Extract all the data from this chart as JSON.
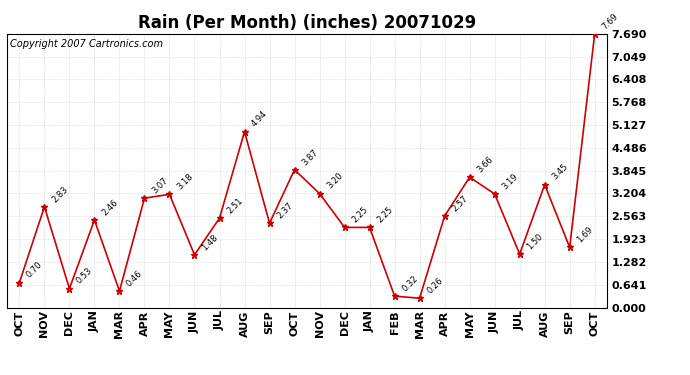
{
  "title": "Rain (Per Month) (inches) 20071029",
  "copyright": "Copyright 2007 Cartronics.com",
  "months": [
    "OCT",
    "NOV",
    "DEC",
    "JAN",
    "MAR",
    "APR",
    "MAY",
    "JUN",
    "JUL",
    "AUG",
    "SEP",
    "OCT",
    "NOV",
    "DEC",
    "JAN",
    "FEB",
    "MAR",
    "APR",
    "MAY",
    "JUN",
    "JUL",
    "AUG",
    "SEP",
    "OCT"
  ],
  "values": [
    0.7,
    2.83,
    0.53,
    2.46,
    0.46,
    3.07,
    3.18,
    1.48,
    2.51,
    4.94,
    2.37,
    3.87,
    3.2,
    2.25,
    2.25,
    0.32,
    0.26,
    2.57,
    3.66,
    3.19,
    1.5,
    3.45,
    1.69,
    7.69
  ],
  "labels": [
    "0.70",
    "2.83",
    "0.53",
    "2.46",
    "0.46",
    "3.07",
    "3.18",
    "1.48",
    "2.51",
    "4.94",
    "2.37",
    "3.87",
    "3.20",
    "2.25",
    "2.25",
    "0.32",
    "0.26",
    "2.57",
    "3.66",
    "3.19",
    "1.50",
    "3.45",
    "1.69",
    "7.69"
  ],
  "line_color": "#cc0000",
  "marker_color": "#cc0000",
  "background_color": "#ffffff",
  "grid_color": "#c8c8c8",
  "yticks": [
    0.0,
    0.641,
    1.282,
    1.923,
    2.563,
    3.204,
    3.845,
    4.486,
    5.127,
    5.768,
    6.408,
    7.049,
    7.69
  ],
  "ymax": 7.69,
  "ymin": 0.0,
  "title_fontsize": 12,
  "tick_fontsize": 8,
  "label_fontsize": 6,
  "copyright_fontsize": 7
}
